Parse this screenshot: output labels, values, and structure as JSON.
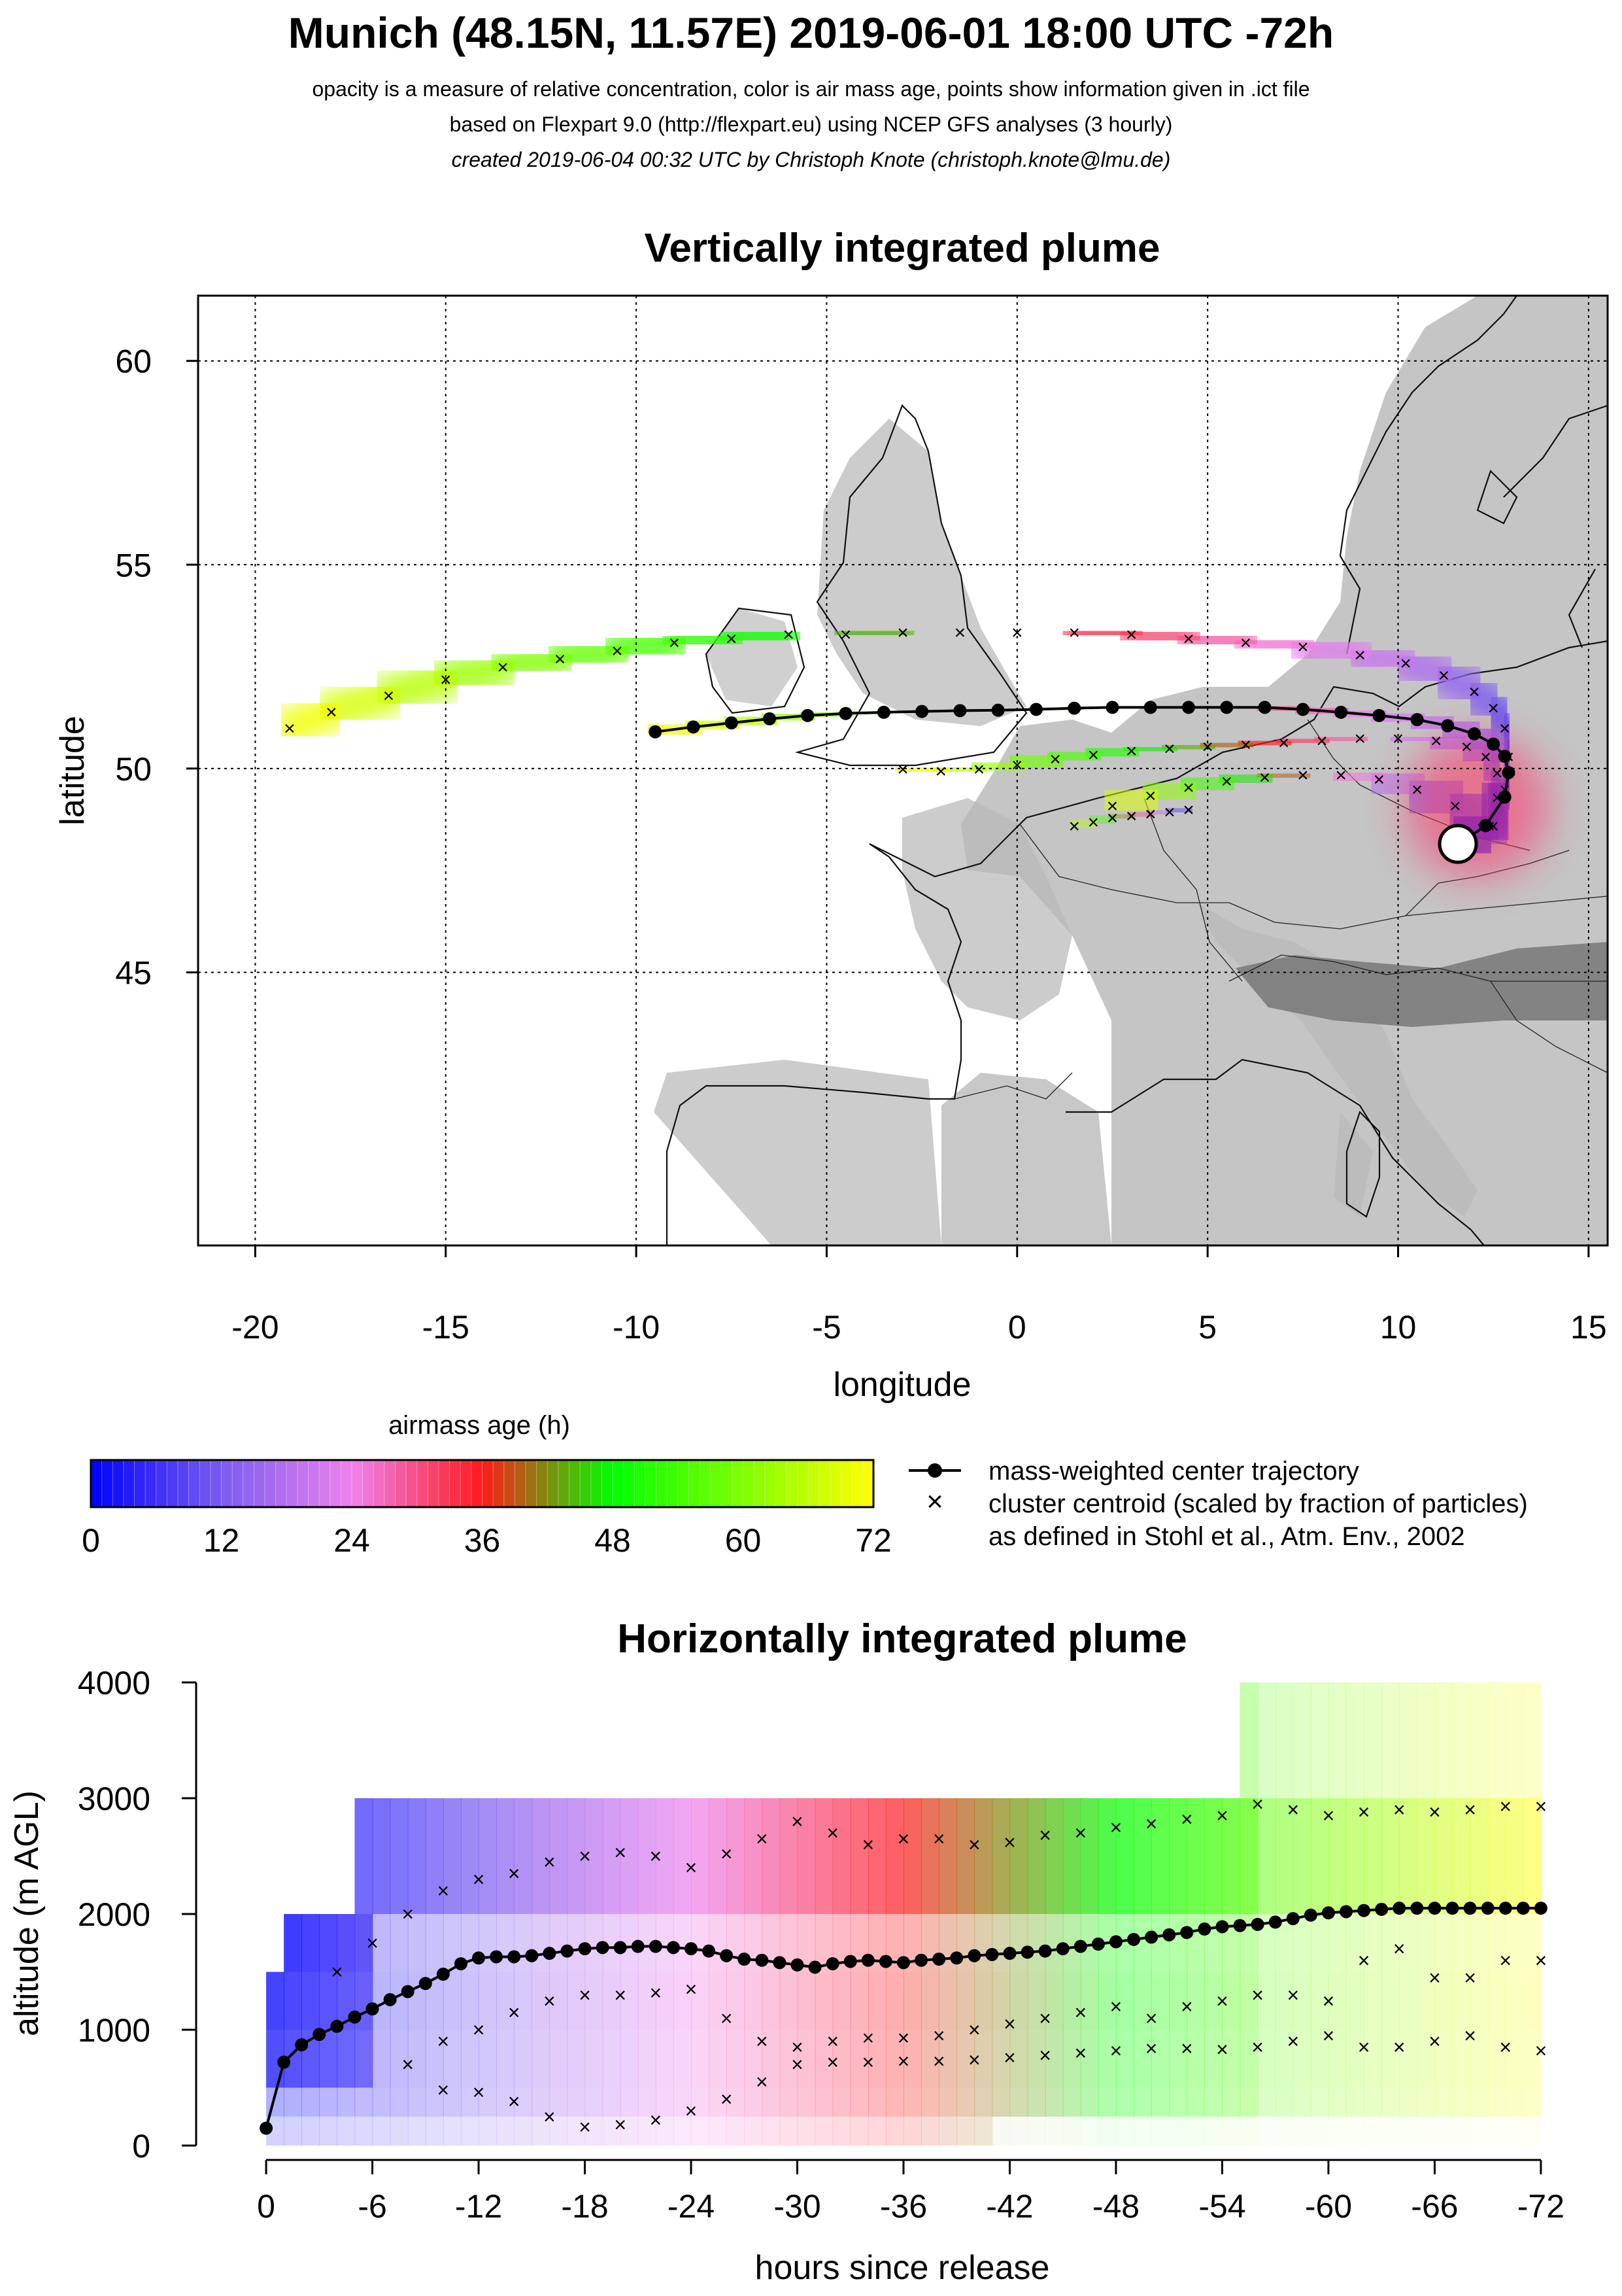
{
  "header": {
    "title": "Munich (48.15N, 11.57E) 2019-06-01 18:00 UTC -72h",
    "line1": "opacity is a measure of relative concentration, color is air mass age, points show information given in .ict file",
    "line2": "based on Flexpart 9.0 (http://flexpart.eu) using NCEP GFS analyses (3 hourly)",
    "line3": "created 2019-06-04 00:32 UTC by Christoph Knote (christoph.knote@lmu.de)"
  },
  "colors": {
    "age_ramp": [
      "#0000ff",
      "#7a5cf0",
      "#ee82ee",
      "#ff1a1a",
      "#00ff00",
      "#ffff00"
    ],
    "trajectory": "#000000",
    "terrain": "#b3b3b3"
  },
  "chart_data": [
    {
      "type": "scatter",
      "title": "Vertically integrated plume",
      "xlabel": "longitude",
      "ylabel": "latitude",
      "xlim": [
        -21.5,
        15.5
      ],
      "ylim": [
        38.3,
        61.6
      ],
      "xticks": [
        -20,
        -15,
        -10,
        -5,
        0,
        5,
        10,
        15
      ],
      "yticks": [
        45,
        50,
        55,
        60
      ],
      "grid": true,
      "release_point": {
        "lon": 11.57,
        "lat": 48.15
      },
      "center_trajectory": {
        "lon": [
          11.6,
          12.3,
          12.8,
          12.9,
          12.8,
          12.5,
          12.0,
          11.3,
          10.5,
          9.5,
          8.5,
          7.5,
          6.5,
          5.5,
          4.5,
          3.5,
          2.5,
          1.5,
          0.5,
          -0.5,
          -1.5,
          -2.5,
          -3.5,
          -4.5,
          -5.5,
          -6.5,
          -7.5,
          -8.5,
          -9.5
        ],
        "lat": [
          48.15,
          48.6,
          49.3,
          49.9,
          50.3,
          50.6,
          50.85,
          51.05,
          51.2,
          51.3,
          51.38,
          51.45,
          51.5,
          51.5,
          51.5,
          51.5,
          51.5,
          51.48,
          51.45,
          51.43,
          51.42,
          51.4,
          51.38,
          51.35,
          51.3,
          51.22,
          51.12,
          51.02,
          50.9
        ]
      },
      "cluster_tracks": [
        {
          "lon": [
            12.5,
            12.8,
            12.9,
            12.8,
            12.5,
            12.0,
            11.2,
            10.2,
            9.0,
            7.5,
            6.0,
            4.5,
            3.0,
            1.5,
            0.0,
            -1.5,
            -3.0,
            -4.5,
            -6.0,
            -7.5,
            -9.0,
            -10.5,
            -12.0,
            -13.5,
            -15.0,
            -16.5,
            -18.0,
            -19.1
          ],
          "lat": [
            48.6,
            49.5,
            50.3,
            51.0,
            51.5,
            51.9,
            52.3,
            52.6,
            52.8,
            53.0,
            53.1,
            53.2,
            53.3,
            53.35,
            53.35,
            53.35,
            53.35,
            53.3,
            53.3,
            53.2,
            53.1,
            52.9,
            52.7,
            52.5,
            52.2,
            51.8,
            51.4,
            51.0
          ]
        },
        {
          "lon": [
            12.4,
            12.6,
            12.6,
            12.3,
            11.8,
            11.0,
            10.0,
            9.0,
            8.0,
            7.0,
            6.0,
            5.0,
            4.0,
            3.0,
            2.0,
            1.0,
            0.0,
            -1.0,
            -2.0,
            -3.0
          ],
          "lat": [
            48.6,
            49.3,
            49.9,
            50.3,
            50.55,
            50.7,
            50.75,
            50.75,
            50.7,
            50.65,
            50.6,
            50.55,
            50.5,
            50.45,
            50.35,
            50.25,
            50.1,
            50.0,
            49.95,
            50.0
          ]
        },
        {
          "lon": [
            12.2,
            11.5,
            10.5,
            9.5,
            8.5,
            7.5,
            6.5,
            5.5,
            4.5,
            3.5,
            2.5
          ],
          "lat": [
            48.55,
            49.1,
            49.5,
            49.75,
            49.85,
            49.85,
            49.8,
            49.7,
            49.55,
            49.35,
            49.1
          ]
        },
        {
          "lon": [
            4.5,
            4.0,
            3.5,
            3.0,
            2.5,
            2.0,
            1.5
          ],
          "lat": [
            49.0,
            48.95,
            48.9,
            48.85,
            48.8,
            48.7,
            48.6
          ]
        }
      ]
    },
    {
      "type": "scatter",
      "title": "Horizontally integrated plume",
      "xlabel": "hours since release",
      "ylabel": "altitude (m AGL)",
      "xlim": [
        1,
        -73
      ],
      "ylim": [
        0,
        4000
      ],
      "xticks": [
        0,
        -6,
        -12,
        -18,
        -24,
        -30,
        -36,
        -42,
        -48,
        -54,
        -60,
        -66,
        -72
      ],
      "yticks": [
        0,
        1000,
        2000,
        3000,
        4000
      ],
      "center_trajectory": {
        "hours": [
          0,
          -1,
          -2,
          -3,
          -4,
          -5,
          -6,
          -7,
          -8,
          -9,
          -10,
          -11,
          -12,
          -13,
          -14,
          -15,
          -16,
          -17,
          -18,
          -19,
          -20,
          -21,
          -22,
          -23,
          -24,
          -25,
          -26,
          -27,
          -28,
          -29,
          -30,
          -31,
          -32,
          -33,
          -34,
          -35,
          -36,
          -37,
          -38,
          -39,
          -40,
          -41,
          -42,
          -43,
          -44,
          -45,
          -46,
          -47,
          -48,
          -49,
          -50,
          -51,
          -52,
          -53,
          -54,
          -55,
          -56,
          -57,
          -58,
          -59,
          -60,
          -61,
          -62,
          -63,
          -64,
          -65,
          -66,
          -67,
          -68,
          -69,
          -70,
          -71,
          -72
        ],
        "altitude": [
          150,
          720,
          870,
          960,
          1030,
          1110,
          1180,
          1260,
          1330,
          1400,
          1480,
          1570,
          1620,
          1630,
          1630,
          1640,
          1660,
          1680,
          1700,
          1710,
          1710,
          1720,
          1720,
          1710,
          1700,
          1680,
          1640,
          1610,
          1600,
          1580,
          1560,
          1540,
          1570,
          1590,
          1600,
          1590,
          1580,
          1600,
          1610,
          1620,
          1640,
          1650,
          1660,
          1670,
          1680,
          1700,
          1720,
          1740,
          1760,
          1780,
          1800,
          1820,
          1840,
          1870,
          1890,
          1900,
          1910,
          1930,
          1960,
          1990,
          2010,
          2020,
          2030,
          2040,
          2050,
          2050,
          2050,
          2050,
          2050,
          2050,
          2050,
          2050,
          2050
        ]
      },
      "cluster_tracks": [
        {
          "hours": [
            -4,
            -6,
            -8,
            -10,
            -12,
            -14,
            -16,
            -18,
            -20,
            -22,
            -24,
            -26,
            -28,
            -30,
            -32,
            -34,
            -36,
            -38,
            -40,
            -42,
            -44,
            -46,
            -48,
            -50,
            -52,
            -54,
            -56,
            -58,
            -60,
            -62,
            -64,
            -66,
            -68,
            -70,
            -72
          ],
          "altitude": [
            1500,
            1750,
            2000,
            2200,
            2300,
            2350,
            2450,
            2500,
            2530,
            2500,
            2400,
            2520,
            2650,
            2800,
            2700,
            2600,
            2650,
            2650,
            2600,
            2620,
            2680,
            2700,
            2750,
            2780,
            2820,
            2850,
            2950,
            2900,
            2850,
            2880,
            2900,
            2880,
            2900,
            2930,
            2930
          ]
        },
        {
          "hours": [
            -8,
            -10,
            -12,
            -14,
            -16,
            -18,
            -20,
            -22,
            -24,
            -26,
            -28,
            -30,
            -32,
            -34,
            -36,
            -38,
            -40,
            -42,
            -44,
            -46,
            -48,
            -50,
            -52,
            -54,
            -56,
            -58,
            -60,
            -62,
            -64,
            -66,
            -68,
            -70,
            -72
          ],
          "altitude": [
            700,
            900,
            1000,
            1150,
            1250,
            1300,
            1300,
            1320,
            1350,
            1100,
            900,
            850,
            900,
            930,
            930,
            950,
            1000,
            1050,
            1100,
            1150,
            1200,
            1100,
            1200,
            1250,
            1300,
            1300,
            1250,
            1600,
            1700,
            1450,
            1450,
            1600,
            1600
          ]
        },
        {
          "hours": [
            -10,
            -12,
            -14,
            -16,
            -18,
            -20,
            -22,
            -24,
            -26,
            -28,
            -30,
            -32,
            -34,
            -36,
            -38,
            -40,
            -42,
            -44,
            -46,
            -48,
            -50,
            -52,
            -54,
            -56,
            -58,
            -60,
            -62,
            -64,
            -66,
            -68,
            -70,
            -72
          ],
          "altitude": [
            480,
            460,
            380,
            250,
            160,
            180,
            220,
            300,
            400,
            550,
            700,
            720,
            720,
            730,
            730,
            740,
            760,
            780,
            800,
            820,
            840,
            840,
            830,
            850,
            900,
            950,
            850,
            850,
            900,
            950,
            850,
            820
          ]
        }
      ]
    }
  ],
  "legend": {
    "title": "airmass age (h)",
    "ticks": [
      "0",
      "12",
      "24",
      "36",
      "48",
      "60",
      "72"
    ],
    "center_label": "mass-weighted center trajectory",
    "cluster_label_1": "cluster centroid (scaled by fraction of particles)",
    "cluster_label_2": "as defined in Stohl et al., Atm. Env., 2002"
  }
}
